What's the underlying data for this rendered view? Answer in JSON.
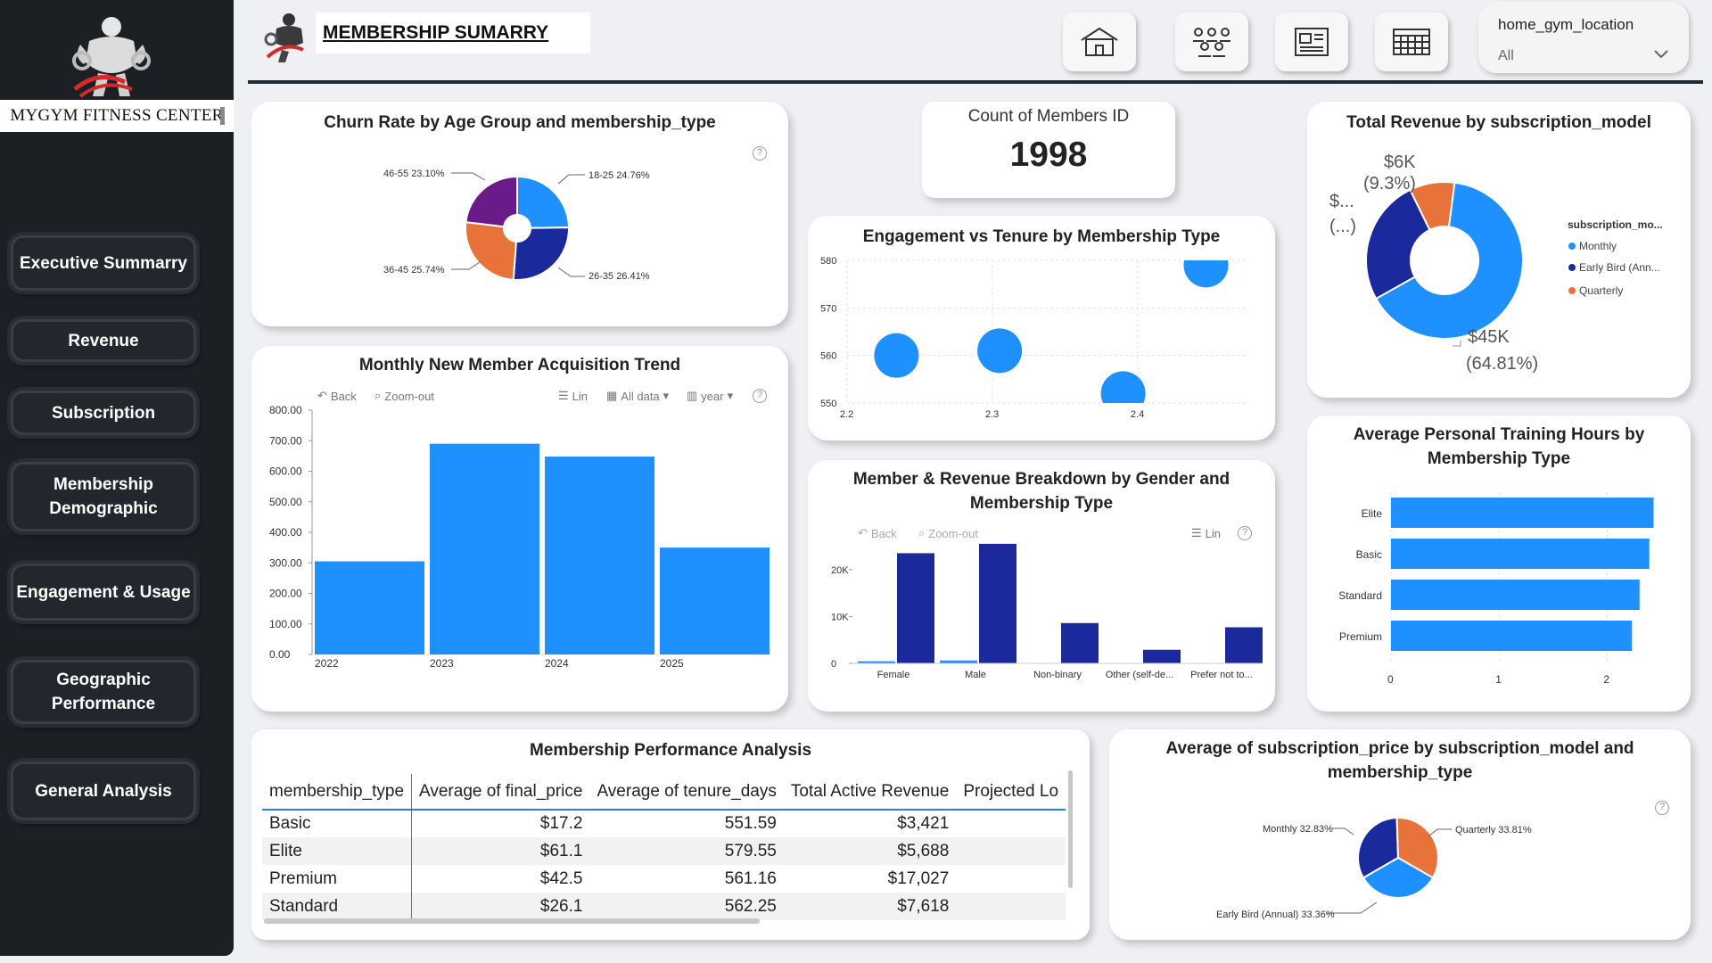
{
  "brand": {
    "name": "MYGYM FITNESS CENTER",
    "logo_icon": "bodybuilder-logo-icon"
  },
  "header": {
    "title": "MEMBERSHIP SUMARRY"
  },
  "nav": {
    "items": [
      {
        "label": "Executive Summarry"
      },
      {
        "label": "Revenue"
      },
      {
        "label": "Subscription"
      },
      {
        "label": "Membership Demographic"
      },
      {
        "label": "Engagement & Usage"
      },
      {
        "label": "Geographic Performance"
      },
      {
        "label": "General Analysis"
      }
    ]
  },
  "toolbar_icons": [
    "home-icon",
    "people-group-icon",
    "report-icon",
    "calendar-table-icon"
  ],
  "slicer": {
    "label": "home_gym_location",
    "value": "All"
  },
  "colors": {
    "blue": "#1e90ff",
    "navy": "#1a2a9c",
    "orange": "#e8733a",
    "purple": "#6a1b8a",
    "sidebar": "#1c1f24"
  },
  "charts": {
    "churn": {
      "title": "Churn Rate by Age Group and membership_type",
      "labels": [
        "46-55 23.10%",
        "18-25 24.76%",
        "26-35 26.41%",
        "36-45 25.74%"
      ]
    },
    "kpi": {
      "title": "Count of Members ID",
      "value": "1998"
    },
    "revenue_donut": {
      "title": "Total Revenue by subscription_model",
      "label_small": "$6K",
      "label_small_pct": "(9.3%)",
      "label_trunc": "$...",
      "label_trunc_pct": "(...)",
      "label_large": "$45K",
      "label_large_pct": "(64.81%)",
      "legend_title": "subscription_mo...",
      "legend": [
        "Monthly",
        "Early Bird (Ann...",
        "Quarterly"
      ]
    },
    "engagement": {
      "title": "Engagement vs Tenure by Membership Type"
    },
    "acquisition": {
      "title": "Monthly New Member Acquisition Trend",
      "toolbar": {
        "back": "Back",
        "zoom": "Zoom-out",
        "lin": "Lin",
        "all": "All data",
        "year": "year"
      }
    },
    "gender": {
      "title": "Member & Revenue Breakdown by Gender and Membership Type",
      "toolbar": {
        "back": "Back",
        "zoom": "Zoom-out",
        "lin": "Lin"
      }
    },
    "training": {
      "title": "Average Personal Training Hours by Membership Type"
    },
    "subprice": {
      "title": "Average of subscription_price by subscription_model and membership_type",
      "labels": [
        "Monthly 32.83%",
        "Quarterly 33.81%",
        "Early Bird (Annual) 33.36%"
      ]
    }
  },
  "chart_data": [
    {
      "type": "pie",
      "title": "Churn Rate by Age Group and membership_type",
      "categories": [
        "18-25",
        "26-35",
        "36-45",
        "46-55"
      ],
      "values": [
        24.76,
        26.41,
        25.74,
        23.1
      ],
      "colors": [
        "#1e90ff",
        "#1a2a9c",
        "#e8733a",
        "#6a1b8a"
      ]
    },
    {
      "type": "pie",
      "title": "Total Revenue by subscription_model",
      "categories": [
        "Monthly",
        "Early Bird (Annual)",
        "Quarterly"
      ],
      "values": [
        64.81,
        25.89,
        9.3
      ],
      "colors": [
        "#1e90ff",
        "#1a2a9c",
        "#e8733a"
      ]
    },
    {
      "type": "scatter",
      "title": "Engagement vs Tenure by Membership Type",
      "x_ticks": [
        "2.2",
        "2.3",
        "2.4"
      ],
      "y_ticks": [
        "580",
        "570",
        "560",
        "550"
      ],
      "xlim": [
        2.2,
        2.47
      ],
      "ylim": [
        550,
        580
      ],
      "points": [
        {
          "x": 2.234,
          "y": 560
        },
        {
          "x": 2.305,
          "y": 561
        },
        {
          "x": 2.39,
          "y": 552
        },
        {
          "x": 2.447,
          "y": 579
        }
      ]
    },
    {
      "type": "bar",
      "title": "Monthly New Member Acquisition Trend",
      "categories": [
        "2022",
        "2023",
        "2024",
        "2025"
      ],
      "values": [
        305,
        690,
        648,
        350
      ],
      "y_ticks": [
        "800.00",
        "700.00",
        "600.00",
        "500.00",
        "400.00",
        "300.00",
        "200.00",
        "100.00",
        "0.00"
      ],
      "ylim": [
        0,
        800
      ]
    },
    {
      "type": "bar",
      "title": "Member & Revenue Breakdown by Gender and Membership Type",
      "categories": [
        "Female",
        "Male",
        "Non-binary",
        "Other (self-de...",
        "Prefer not to..."
      ],
      "series": [
        {
          "values": [
            450,
            620,
            0,
            0,
            0
          ]
        },
        {
          "values": [
            23500,
            25500,
            8600,
            2900,
            7700
          ]
        }
      ],
      "y_ticks": [
        "20K",
        "10K",
        "0"
      ],
      "ylim": [
        0,
        27000
      ]
    },
    {
      "type": "bar",
      "title": "Average Personal Training Hours by Membership Type",
      "categories": [
        "Elite",
        "Basic",
        "Standard",
        "Premium"
      ],
      "values": [
        2.43,
        2.39,
        2.3,
        2.23
      ],
      "x_ticks": [
        "0",
        "1",
        "2"
      ],
      "xlim": [
        0,
        2.5
      ]
    },
    {
      "type": "pie",
      "title": "Average of subscription_price by subscription_model and membership_type",
      "categories": [
        "Monthly",
        "Quarterly",
        "Early Bird (Annual)"
      ],
      "values": [
        32.83,
        33.81,
        33.36
      ],
      "colors": [
        "#1a2a9c",
        "#e8733a",
        "#1e90ff"
      ]
    },
    {
      "type": "table",
      "title": "Membership Performance Analysis",
      "columns": [
        "membership_type",
        "Average of final_price",
        "Average of tenure_days",
        "Total Active Revenue",
        "Projected Lo"
      ],
      "rows": [
        [
          "Basic",
          "$17.2",
          "551.59",
          "$3,421",
          ""
        ],
        [
          "Elite",
          "$61.1",
          "579.55",
          "$5,688",
          ""
        ],
        [
          "Premium",
          "$42.5",
          "561.16",
          "$17,027",
          ""
        ],
        [
          "Standard",
          "$26.1",
          "562.25",
          "$7,618",
          ""
        ]
      ]
    }
  ]
}
